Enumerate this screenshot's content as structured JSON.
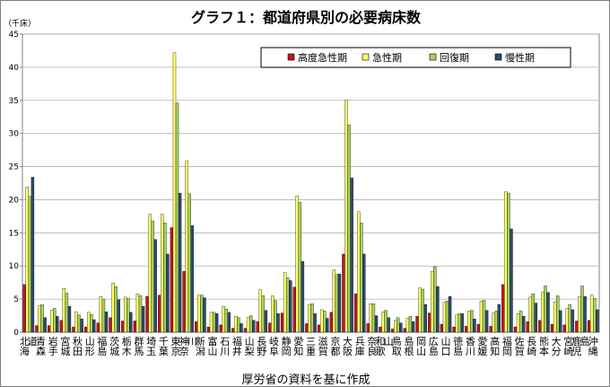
{
  "title": "グラフ１：都道府県別の必要病床数",
  "unit": "（千床）",
  "source": "厚労省の資料を基に作成",
  "colors": {
    "高度急性期": "#c0161b",
    "急性期": "#ffff66",
    "回復期": "#a8d060",
    "慢性期": "#2e4a6e"
  },
  "chart_data": {
    "type": "bar",
    "title": "グラフ１：都道府県別の必要病床数",
    "ylabel": "（千床）",
    "xlabel": "",
    "ylim": [
      0,
      45
    ],
    "yticks": [
      0,
      5,
      10,
      15,
      20,
      25,
      30,
      35,
      40,
      45
    ],
    "grid": true,
    "legend": "top-right",
    "categories": [
      "北海道",
      "青森",
      "岩手",
      "宮城",
      "秋田",
      "山形",
      "福島",
      "茨城",
      "栃木",
      "群馬",
      "埼玉",
      "千葉",
      "東京",
      "神奈川",
      "新潟",
      "富山",
      "石川",
      "福井",
      "山梨",
      "長野",
      "岐阜",
      "静岡",
      "愛知",
      "三重",
      "滋賀",
      "京都",
      "大阪",
      "兵庫",
      "奈良",
      "和歌山",
      "鳥取",
      "島根",
      "岡山",
      "広島",
      "山口",
      "徳島",
      "香川",
      "愛媛",
      "高知",
      "福岡",
      "佐賀",
      "長崎",
      "熊本",
      "大分",
      "宮崎",
      "鹿児島",
      "沖縄"
    ],
    "series": [
      {
        "name": "高度急性期",
        "values": [
          7.2,
          1.0,
          1.0,
          1.8,
          0.8,
          0.8,
          1.4,
          2.2,
          1.7,
          1.7,
          5.4,
          5.6,
          15.8,
          9.2,
          1.6,
          0.8,
          1.1,
          0.6,
          0.6,
          1.6,
          1.4,
          2.9,
          6.8,
          1.3,
          1.1,
          3.0,
          11.8,
          5.8,
          1.3,
          0.8,
          0.5,
          0.6,
          2.4,
          2.9,
          1.2,
          0.8,
          0.9,
          1.2,
          0.9,
          7.2,
          0.8,
          1.6,
          1.8,
          1.2,
          1.1,
          1.7,
          1.8
        ]
      },
      {
        "name": "急性期",
        "values": [
          21.9,
          4.0,
          3.3,
          6.6,
          3.1,
          3.0,
          5.4,
          7.4,
          5.3,
          5.8,
          17.8,
          17.8,
          42.2,
          25.9,
          5.6,
          3.0,
          3.9,
          2.4,
          2.2,
          6.4,
          5.5,
          9.0,
          20.6,
          4.2,
          3.4,
          9.4,
          35.0,
          18.2,
          4.3,
          3.1,
          1.8,
          2.1,
          6.7,
          9.2,
          4.5,
          2.6,
          3.2,
          4.7,
          2.9,
          21.2,
          2.8,
          5.3,
          6.1,
          4.6,
          3.6,
          5.4,
          5.6
        ]
      },
      {
        "name": "回復期",
        "values": [
          20.5,
          4.2,
          3.6,
          5.9,
          2.6,
          2.7,
          5.0,
          6.9,
          5.1,
          5.5,
          16.8,
          16.5,
          34.6,
          20.9,
          5.6,
          3.0,
          3.5,
          2.2,
          2.5,
          5.5,
          4.8,
          8.2,
          19.6,
          4.3,
          3.2,
          8.7,
          31.3,
          16.5,
          4.3,
          3.3,
          2.2,
          2.4,
          6.5,
          9.9,
          4.7,
          2.8,
          3.3,
          4.8,
          3.2,
          21.0,
          3.2,
          5.8,
          7.0,
          5.5,
          4.2,
          7.0,
          5.1
        ]
      },
      {
        "name": "慢性期",
        "values": [
          23.4,
          2.2,
          2.4,
          3.9,
          2.0,
          1.9,
          3.1,
          4.9,
          3.0,
          3.9,
          14.0,
          11.8,
          21.0,
          16.1,
          5.2,
          2.8,
          3.0,
          1.3,
          1.8,
          3.3,
          2.8,
          7.8,
          10.7,
          2.8,
          2.1,
          8.8,
          23.3,
          11.8,
          2.5,
          2.2,
          1.4,
          1.6,
          4.2,
          6.9,
          5.4,
          2.8,
          2.0,
          3.3,
          4.2,
          15.6,
          2.4,
          4.4,
          6.0,
          3.3,
          3.4,
          5.4,
          3.4
        ]
      }
    ]
  }
}
